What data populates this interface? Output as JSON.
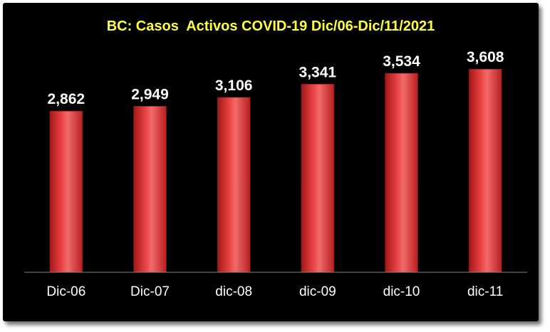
{
  "chart_data": {
    "type": "bar",
    "title": "BC: Casos  Activos COVID-19 Dic/06-Dic/11/2021",
    "categories": [
      "Dic-06",
      "Dic-07",
      "dic-08",
      "dic-09",
      "dic-10",
      "dic-11"
    ],
    "values": [
      2862,
      2949,
      3106,
      3341,
      3534,
      3608
    ],
    "value_labels": [
      "2,862",
      "2,949",
      "3,106",
      "3,341",
      "3,534",
      "3,608"
    ],
    "xlabel": "",
    "ylabel": "",
    "ylim": [
      0,
      3900
    ],
    "grid": false,
    "legend": "none",
    "colors": {
      "background": "#000000",
      "bar": "#d92b2b",
      "bar_highlight": "#f26a6a",
      "title": "#ffff3c",
      "labels": "#ffffff",
      "axis": "#808080"
    }
  }
}
